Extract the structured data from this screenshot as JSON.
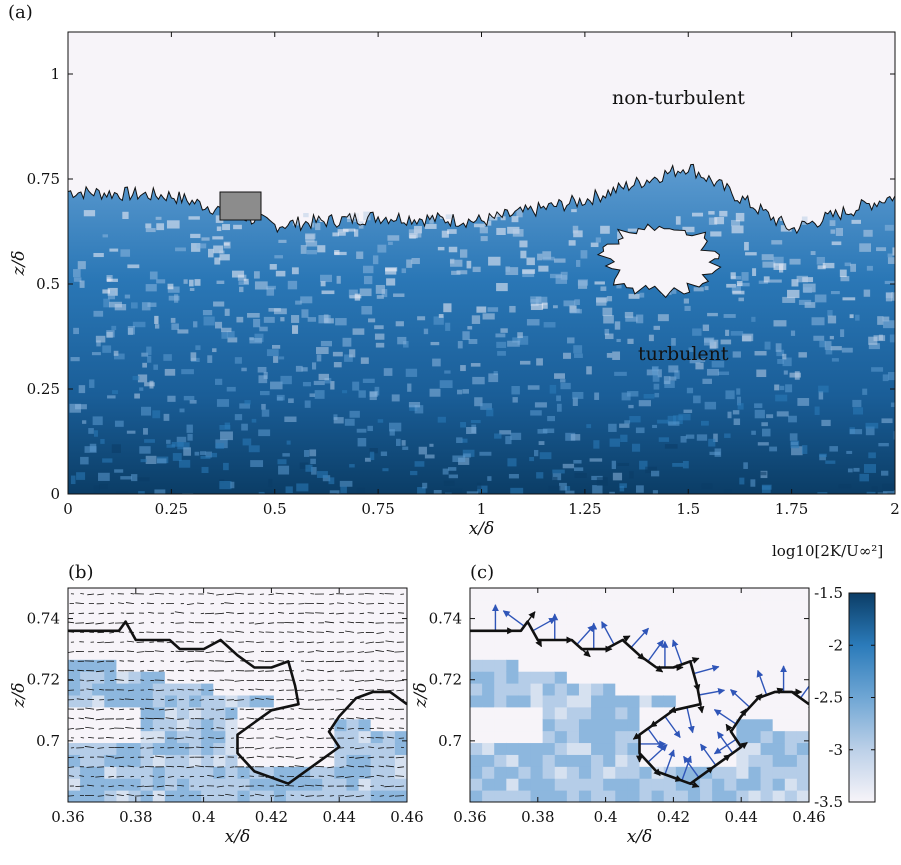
{
  "panels": {
    "a": {
      "label": "(a)",
      "xlabel": "x/δ",
      "ylabel": "z/δ",
      "xticks": [
        "0",
        "0.25",
        "0.5",
        "0.75",
        "1",
        "1.25",
        "1.5",
        "1.75",
        "2"
      ],
      "yticks": [
        "0",
        "0.25",
        "0.5",
        "0.75",
        "1"
      ],
      "annotation_top": "non-turbulent",
      "annotation_bottom": "turbulent"
    },
    "b": {
      "label": "(b)",
      "xlabel": "x/δ",
      "ylabel": "z/δ",
      "xticks": [
        "0.36",
        "0.38",
        "0.4",
        "0.42",
        "0.44",
        "0.46"
      ],
      "yticks": [
        "0.7",
        "0.72",
        "0.74"
      ]
    },
    "c": {
      "label": "(c)",
      "xlabel": "x/δ",
      "ylabel": "z/δ",
      "xticks": [
        "0.36",
        "0.38",
        "0.4",
        "0.42",
        "0.44",
        "0.46"
      ],
      "yticks": [
        "0.7",
        "0.72",
        "0.74"
      ]
    }
  },
  "colorbar": {
    "title": "log10[2K/U∞²]",
    "ticks": [
      "-1.5",
      "-2",
      "-2.5",
      "-3",
      "-3.5"
    ],
    "range": [
      -3.5,
      -1.5
    ],
    "colors": [
      "#f7f4f9",
      "#bcd0e8",
      "#6fa6d4",
      "#2b7bba",
      "#0b3d66"
    ]
  },
  "chart_data": [
    {
      "type": "heatmap",
      "panel": "(a)",
      "xlabel": "x/δ",
      "ylabel": "z/δ",
      "xlim": [
        0,
        2
      ],
      "ylim": [
        0,
        1.1
      ],
      "colorbar_label": "log10[2K/U∞²]",
      "color_range": [
        -3.5,
        -1.5
      ],
      "annotations": [
        "non-turbulent",
        "turbulent"
      ],
      "interface_height_approx": [
        {
          "x": 0,
          "z": 0.72
        },
        {
          "x": 0.25,
          "z": 0.71
        },
        {
          "x": 0.5,
          "z": 0.64
        },
        {
          "x": 0.75,
          "z": 0.66
        },
        {
          "x": 1,
          "z": 0.65
        },
        {
          "x": 1.25,
          "z": 0.7
        },
        {
          "x": 1.5,
          "z": 0.78
        },
        {
          "x": 1.75,
          "z": 0.63
        },
        {
          "x": 2,
          "z": 0.71
        }
      ],
      "inset_box": {
        "x": [
          0.36,
          0.46
        ],
        "z": [
          0.68,
          0.75
        ]
      }
    },
    {
      "type": "heatmap",
      "panel": "(b)",
      "xlim": [
        0.36,
        0.46
      ],
      "ylim": [
        0.68,
        0.75
      ],
      "overlay": "velocity vectors"
    },
    {
      "type": "heatmap",
      "panel": "(c)",
      "xlim": [
        0.36,
        0.46
      ],
      "ylim": [
        0.68,
        0.75
      ],
      "overlay": "interface normal vectors"
    }
  ]
}
